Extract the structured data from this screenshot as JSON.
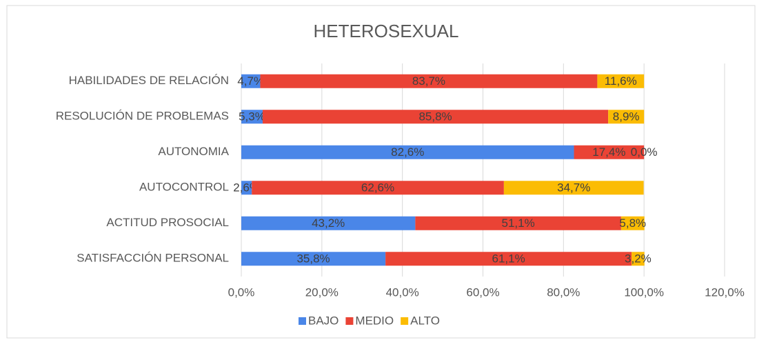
{
  "chart_data": {
    "type": "stacked_barh",
    "title": "HETEROSEXUAL",
    "categories": [
      "HABILIDADES DE RELACIÓN",
      "RESOLUCIÓN DE PROBLEMAS",
      "AUTONOMIA",
      "AUTOCONTROL",
      "ACTITUD PROSOCIAL",
      "SATISFACCIÓN PERSONAL"
    ],
    "series": [
      {
        "name": "BAJO",
        "color": "#4a86e8",
        "values": [
          4.7,
          5.3,
          82.6,
          2.6,
          43.2,
          35.8
        ],
        "value_labels": [
          "4,7%",
          "5,3%",
          "82,6%",
          "2,6%",
          "43,2%",
          "35,8%"
        ]
      },
      {
        "name": "MEDIO",
        "color": "#ea4335",
        "values": [
          83.7,
          85.8,
          17.4,
          62.6,
          51.1,
          61.1
        ],
        "value_labels": [
          "83,7%",
          "85,8%",
          "17,4%",
          "62,6%",
          "51,1%",
          "61,1%"
        ]
      },
      {
        "name": "ALTO",
        "color": "#fbbc04",
        "values": [
          11.6,
          8.9,
          0.0,
          34.7,
          5.8,
          3.2
        ],
        "value_labels": [
          "11,6%",
          "8,9%",
          "0,0%",
          "34,7%",
          "5,8%",
          "3,2%"
        ]
      }
    ],
    "xlim": [
      0,
      120
    ],
    "xticks": [
      {
        "value": 0,
        "label": "0,0%"
      },
      {
        "value": 20,
        "label": "20,0%"
      },
      {
        "value": 40,
        "label": "40,0%"
      },
      {
        "value": 60,
        "label": "60,0%"
      },
      {
        "value": 80,
        "label": "80,0%"
      },
      {
        "value": 100,
        "label": "100,0%"
      },
      {
        "value": 120,
        "label": "120,0%"
      }
    ],
    "grid": true,
    "legend": "bottom"
  }
}
